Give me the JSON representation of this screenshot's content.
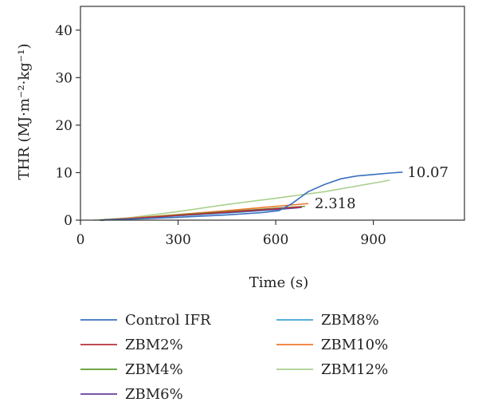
{
  "chart_data": {
    "type": "line",
    "xlabel": "Time (s)",
    "ylabel": "THR (MJ·m⁻²·kg⁻¹)",
    "xlim": [
      0,
      1180
    ],
    "ylim": [
      0,
      45
    ],
    "xticks": [
      0,
      300,
      600,
      900
    ],
    "yticks": [
      0,
      10,
      20,
      30,
      40
    ],
    "grid": false,
    "legend_position": "bottom",
    "series": [
      {
        "name": "Control IFR",
        "color": "#3a6fbf",
        "x": [
          60,
          150,
          300,
          450,
          560,
          610,
          650,
          700,
          750,
          800,
          850,
          900,
          950,
          990
        ],
        "y": [
          0,
          0.2,
          0.6,
          1.1,
          1.6,
          2.0,
          3.5,
          6.0,
          7.5,
          8.7,
          9.3,
          9.6,
          9.9,
          10.1
        ]
      },
      {
        "name": "ZBM2%",
        "color": "#b5303b",
        "x": [
          60,
          150,
          300,
          450,
          600,
          680
        ],
        "y": [
          0,
          0.3,
          1.0,
          1.7,
          2.4,
          2.8
        ]
      },
      {
        "name": "ZBM4%",
        "color": "#5c9a2e",
        "x": [
          60,
          150,
          300,
          450,
          600,
          690
        ],
        "y": [
          0,
          0.3,
          1.1,
          1.8,
          2.5,
          2.9
        ]
      },
      {
        "name": "ZBM6%",
        "color": "#6a3d9a",
        "x": [
          60,
          150,
          300,
          450,
          600,
          680
        ],
        "y": [
          0,
          0.3,
          1.0,
          1.6,
          2.3,
          2.7
        ]
      },
      {
        "name": "ZBM8%",
        "color": "#3fa3d6",
        "x": [
          60,
          150,
          300,
          450,
          600,
          670
        ],
        "y": [
          0,
          0.25,
          0.9,
          1.5,
          2.2,
          2.6
        ]
      },
      {
        "name": "ZBM10%",
        "color": "#ee7a2f",
        "x": [
          60,
          150,
          300,
          450,
          600,
          700
        ],
        "y": [
          0,
          0.4,
          1.2,
          2.0,
          2.9,
          3.5
        ]
      },
      {
        "name": "ZBM12%",
        "color": "#a9d18e",
        "x": [
          40,
          150,
          300,
          450,
          600,
          750,
          950
        ],
        "y": [
          0,
          0.5,
          1.8,
          3.3,
          4.6,
          6.0,
          8.4
        ]
      }
    ],
    "annotations": [
      {
        "text": "10.07",
        "x": 995,
        "y": 10.07
      },
      {
        "text": "2.318",
        "x": 710,
        "y": 3.5
      }
    ]
  }
}
